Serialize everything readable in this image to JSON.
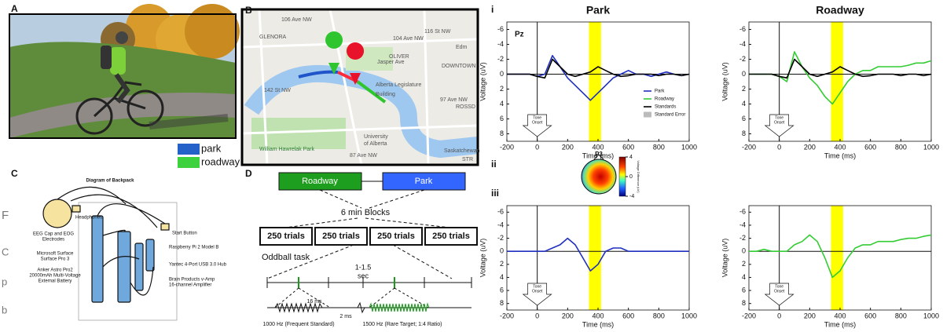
{
  "background_fragments": [
    "F",
    "C",
    "p",
    "b"
  ],
  "panel_labels": [
    "A",
    "B",
    "C",
    "D"
  ],
  "route_legend": [
    {
      "label": "park",
      "color": "#2461c9"
    },
    {
      "label": "roadway",
      "color": "#3dd13d"
    }
  ],
  "map": {
    "labels": [
      "106 Ave NW",
      "GLENORA",
      "104 Ave NW",
      "OLIVER",
      "Edm",
      "DOWNTOWN",
      "Jasper Ave",
      "Alberta Legislature",
      "Building",
      "97 Ave NW",
      "ROSSD",
      "William Hawrelak Park",
      "University",
      "of Alberta",
      "87 Ave NW",
      "Saskatchewan",
      "STR",
      "142 St NW",
      "116 St NW"
    ]
  },
  "backpack": {
    "title": "Diagram of Backpack",
    "labels": [
      [
        "Headphones"
      ],
      [
        "EEG Cap and EOG",
        "Electrodes"
      ],
      [
        "Start Button"
      ],
      [
        "Raspberry Pi 2 Model B"
      ],
      [
        "Microsoft Surface",
        "Surface Pro 3"
      ],
      [
        "Yantec 4-Port USB 3.0 Hub"
      ],
      [
        "Anker Astro Pro2",
        "20000mAh Multi-Voltage",
        "External Battery"
      ],
      [
        "Brain Products v-Amp",
        "16-channel Amplifier"
      ]
    ]
  },
  "design": {
    "conditions": [
      {
        "label": "Roadway",
        "color": "#1e9e1e"
      },
      {
        "label": "Park",
        "color": "#3366ff"
      }
    ],
    "blocks_label": "6 min Blocks",
    "blocks": [
      "250 trials",
      "250 trials",
      "250 trials",
      "250 trials"
    ],
    "task": "Oddball task",
    "isi": "1-1.5",
    "isi_unit": "sec",
    "tone_duration": "16 ms",
    "ramp": "2 ms",
    "standard": "1000 Hz (Frequent Standard)",
    "target": "1500 Hz (Rare Target; 1:4 Ratio)"
  },
  "topography": {
    "panel_label": "ii",
    "electrode": "P3",
    "colorbar_label": "Voltage Difference (uV)",
    "clim": [
      -4,
      4
    ],
    "colorbar_ticks": [
      4,
      0,
      -4
    ]
  },
  "chart_data": [
    {
      "type": "line",
      "panel_label": "i",
      "title": "Park",
      "annotation": "Pz",
      "onset_label": [
        "Tone",
        "Onset"
      ],
      "x": [
        -200,
        -150,
        -100,
        -50,
        0,
        50,
        100,
        150,
        200,
        250,
        300,
        350,
        400,
        450,
        500,
        550,
        600,
        650,
        700,
        750,
        800,
        850,
        900,
        950,
        1000
      ],
      "series": [
        {
          "color": "#1f2fbf",
          "values": [
            0,
            0,
            0,
            0,
            0.3,
            0,
            -2.5,
            -1,
            0.5,
            1.5,
            2.5,
            3.5,
            2.5,
            1.5,
            0.5,
            0,
            -0.5,
            0,
            0,
            0.3,
            0,
            -0.3,
            0,
            0.2,
            0
          ]
        },
        {
          "color": "#000000",
          "values": [
            0,
            0,
            0,
            0,
            0.3,
            0.5,
            -2,
            -1,
            0,
            0.3,
            0,
            -0.3,
            -1,
            -0.5,
            0,
            0.3,
            0.2,
            0,
            0,
            0,
            0.2,
            0,
            0,
            0.2,
            0
          ]
        }
      ],
      "legend_items": [
        {
          "name": "Park",
          "color": "#1f2fbf"
        },
        {
          "name": "Roadway",
          "color": "#33cc33"
        },
        {
          "name": "Standards",
          "color": "#000000"
        },
        {
          "name": "Standard Error",
          "color": "#bbbbbb"
        }
      ],
      "xlim": [
        -200,
        1000
      ],
      "ylim": [
        -7,
        9
      ],
      "y_reversed": true,
      "xticks": [
        -200,
        0,
        200,
        400,
        600,
        800,
        1000
      ],
      "yticks": [
        -6,
        -4,
        -2,
        0,
        2,
        4,
        6,
        8
      ],
      "xlabel": "Time (ms)",
      "ylabel": "Voltage (uV)",
      "highlight": [
        340,
        420
      ],
      "highlight_color": "#ffff00"
    },
    {
      "type": "line",
      "title": "Roadway",
      "onset_label": [
        "Tone",
        "Onset"
      ],
      "x": [
        -200,
        -150,
        -100,
        -50,
        0,
        50,
        100,
        150,
        200,
        250,
        300,
        350,
        400,
        450,
        500,
        550,
        600,
        650,
        700,
        750,
        800,
        850,
        900,
        950,
        1000
      ],
      "series": [
        {
          "color": "#33cc33",
          "values": [
            0,
            0,
            0,
            0,
            0.3,
            1,
            -3,
            -1,
            0.5,
            1.5,
            3,
            4,
            2.5,
            1,
            0,
            -0.5,
            -0.5,
            -1,
            -1,
            -1,
            -1,
            -1.2,
            -1.5,
            -1.5,
            -1.8
          ]
        },
        {
          "color": "#000000",
          "values": [
            0,
            0,
            0,
            0,
            0.3,
            0.5,
            -2,
            -1,
            0,
            0.3,
            0,
            -0.3,
            -1,
            -0.5,
            0,
            0.3,
            0.2,
            0,
            0,
            0,
            0.2,
            0,
            0,
            0.2,
            0
          ]
        }
      ],
      "xlim": [
        -200,
        1000
      ],
      "ylim": [
        -7,
        9
      ],
      "y_reversed": true,
      "xticks": [
        -200,
        0,
        200,
        400,
        600,
        800,
        1000
      ],
      "yticks": [
        -6,
        -4,
        -2,
        0,
        2,
        4,
        6,
        8
      ],
      "xlabel": "Time (ms)",
      "ylabel": "Voltage (uV)",
      "highlight": [
        340,
        420
      ],
      "highlight_color": "#ffff00"
    },
    {
      "type": "line",
      "panel_label": "iii",
      "onset_label": [
        "Tone",
        "Onset"
      ],
      "x": [
        -200,
        -150,
        -100,
        -50,
        0,
        50,
        100,
        150,
        200,
        250,
        300,
        350,
        400,
        450,
        500,
        550,
        600,
        650,
        700,
        750,
        800,
        850,
        900,
        950,
        1000
      ],
      "series": [
        {
          "color": "#1f2fbf",
          "values": [
            0,
            0,
            0,
            0,
            0,
            0,
            -0.5,
            -1,
            -2,
            -1,
            1,
            3,
            2,
            0,
            -0.5,
            -0.5,
            0,
            0,
            0,
            0,
            0,
            0,
            0,
            0,
            0
          ]
        }
      ],
      "xlim": [
        -200,
        1000
      ],
      "ylim": [
        -7,
        9
      ],
      "y_reversed": true,
      "xticks": [
        -200,
        0,
        200,
        400,
        600,
        800,
        1000
      ],
      "yticks": [
        -6,
        -4,
        -2,
        0,
        2,
        4,
        6,
        8
      ],
      "xlabel": "Time (ms)",
      "ylabel": "Voltage (uV)",
      "highlight": [
        340,
        420
      ],
      "highlight_color": "#ffff00"
    },
    {
      "type": "line",
      "onset_label": [
        "Tone",
        "Onset"
      ],
      "x": [
        -200,
        -150,
        -100,
        -50,
        0,
        50,
        100,
        150,
        200,
        250,
        300,
        350,
        400,
        450,
        500,
        550,
        600,
        650,
        700,
        750,
        800,
        850,
        900,
        950,
        1000
      ],
      "series": [
        {
          "color": "#33cc33",
          "values": [
            0,
            0,
            -0.3,
            0,
            0,
            0,
            -1,
            -1.5,
            -2.5,
            -1.5,
            1,
            4,
            3,
            1,
            -0.5,
            -1,
            -1,
            -1.5,
            -1.5,
            -1.5,
            -1.8,
            -2,
            -2,
            -2.3,
            -2.5
          ]
        }
      ],
      "xlim": [
        -200,
        1000
      ],
      "ylim": [
        -7,
        9
      ],
      "y_reversed": true,
      "xticks": [
        -200,
        0,
        200,
        400,
        600,
        800,
        1000
      ],
      "yticks": [
        -6,
        -4,
        -2,
        0,
        2,
        4,
        6,
        8
      ],
      "xlabel": "Time (ms)",
      "ylabel": "Voltage (uV)",
      "highlight": [
        340,
        420
      ],
      "highlight_color": "#ffff00"
    }
  ]
}
